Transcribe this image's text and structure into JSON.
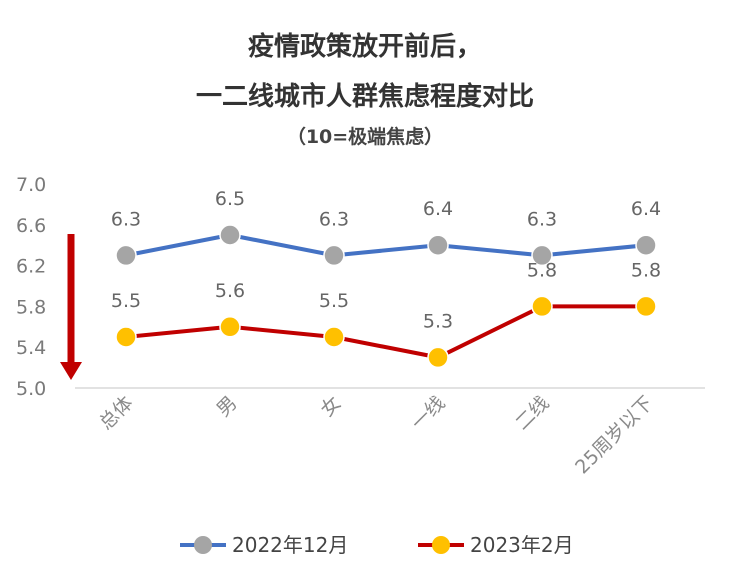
{
  "titles": {
    "line1": "疫情政策放开前后，",
    "line2": "一二线城市人群焦虑程度对比",
    "line3": "（10=极端焦虑）"
  },
  "chart_data": {
    "type": "line",
    "categories": [
      "总体",
      "男",
      "女",
      "一线",
      "二线",
      "25周岁以下"
    ],
    "y_ticks": [
      "5.0",
      "5.4",
      "5.8",
      "6.2",
      "6.6",
      "7.0"
    ],
    "ylim": [
      5.0,
      7.0
    ],
    "grid": false,
    "legend_position": "bottom",
    "annotations": [
      "red-down-arrow"
    ],
    "series": [
      {
        "name": "2022年12月",
        "values": [
          6.3,
          6.5,
          6.3,
          6.4,
          6.3,
          6.4
        ],
        "labels": [
          "6.3",
          "6.5",
          "6.3",
          "6.4",
          "6.3",
          "6.4"
        ],
        "line_color": "#4472C4",
        "marker_color": "#A5A5A5"
      },
      {
        "name": "2023年2月",
        "values": [
          5.5,
          5.6,
          5.5,
          5.3,
          5.8,
          5.8
        ],
        "labels": [
          "5.5",
          "5.6",
          "5.5",
          "5.3",
          "5.8",
          "5.8"
        ],
        "line_color": "#C00000",
        "marker_color": "#FFC000"
      }
    ]
  }
}
